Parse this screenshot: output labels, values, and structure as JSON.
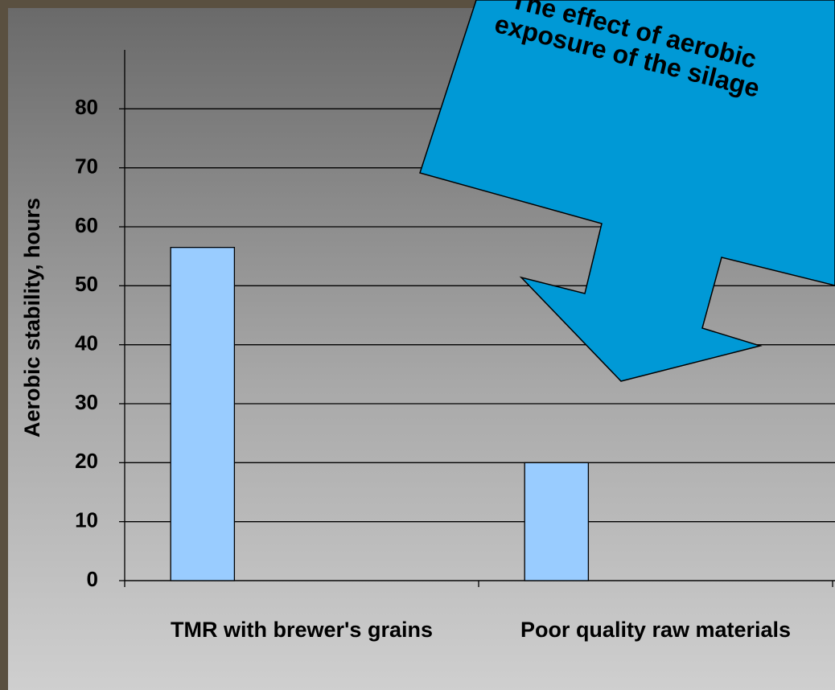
{
  "chart_data": {
    "type": "bar",
    "categories": [
      "TMR with brewer's grains",
      "Poor quality raw materials"
    ],
    "values": [
      56.5,
      20
    ],
    "color": "#99ccff",
    "y_label": "Aerobic stability, hours",
    "ylim": [
      0,
      90
    ],
    "yticks": [
      0,
      10,
      20,
      30,
      40,
      50,
      60,
      70,
      80
    ],
    "grid": true,
    "annotation": "The effect of aerobic exposure of the silage"
  }
}
